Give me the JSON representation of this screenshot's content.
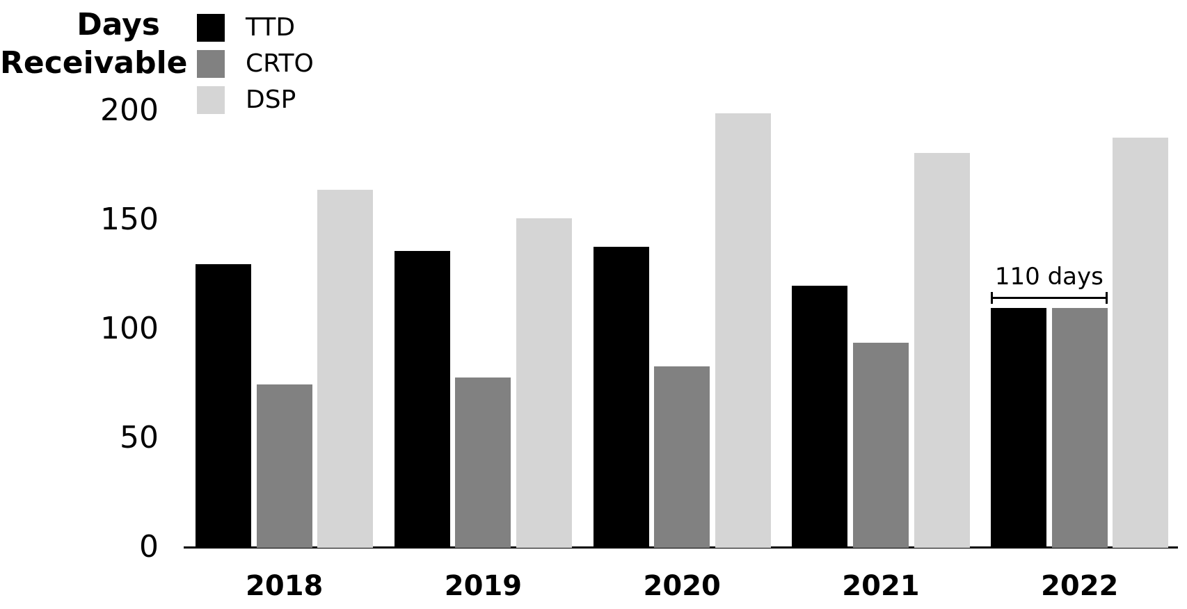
{
  "chart_data": {
    "type": "bar",
    "title": "Days Receivable",
    "ylabel_lines": [
      "Days",
      "Receivable"
    ],
    "categories": [
      "2018",
      "2019",
      "2020",
      "2021",
      "2022"
    ],
    "series": [
      {
        "name": "TTD",
        "color": "#000000",
        "values": [
          130,
          136,
          138,
          120,
          110
        ]
      },
      {
        "name": "CRTO",
        "color": "#818181",
        "values": [
          75,
          78,
          83,
          94,
          110
        ]
      },
      {
        "name": "DSP",
        "color": "#d5d5d5",
        "values": [
          164,
          151,
          199,
          181,
          188
        ]
      }
    ],
    "y_ticks": [
      0,
      50,
      100,
      150,
      200
    ],
    "ylim": [
      0,
      200
    ],
    "grid": false,
    "legend_position": "top-left",
    "axis_color": "#000000",
    "background": "#ffffff",
    "annotation": {
      "text": "110 days",
      "category": "2022",
      "from_series": "TTD",
      "to_series": "CRTO"
    }
  }
}
